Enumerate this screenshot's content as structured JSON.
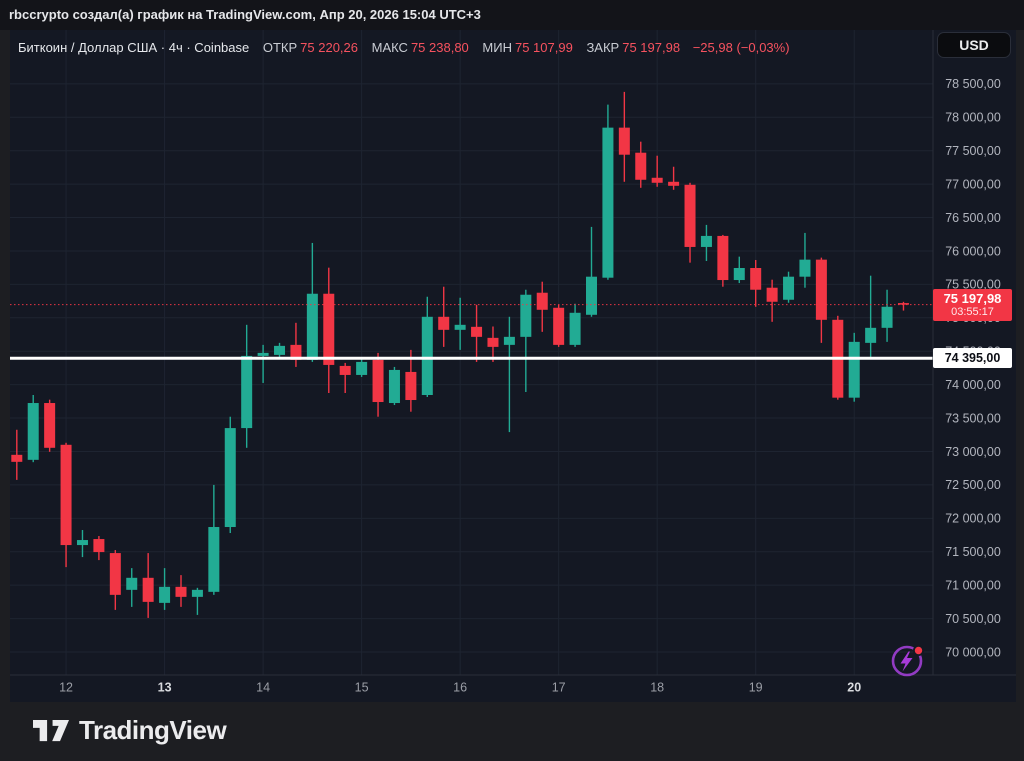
{
  "attribution": {
    "text": "rbccrypto создал(а) график на TradingView.com, Апр 20, 2026 15:04 UTC+3"
  },
  "symbol_bar": {
    "title": "Биткоин / Доллар США · 4ч · Coinbase",
    "ohlc": [
      {
        "label": "ОТКР",
        "value": "75 220,26"
      },
      {
        "label": "МАКС",
        "value": "75 238,80"
      },
      {
        "label": "МИН",
        "value": "75 107,99"
      },
      {
        "label": "ЗАКР",
        "value": "75 197,98"
      }
    ],
    "change": "−25,98 (−0,03%)"
  },
  "currency_button": {
    "label": "USD"
  },
  "footer": {
    "logo_text": "TradingView"
  },
  "colors": {
    "up": "#22ab94",
    "down": "#f23645",
    "grid": "#1e2431",
    "separator": "#2a2e39",
    "axis_text": "#b2b5be",
    "axis_text_bold": "#d8dade",
    "axis_text_dim": "#9b9ea6",
    "white_line": "#ffffff",
    "dotted_line": "#f23645"
  },
  "chart_data": {
    "type": "candlestick",
    "title": "Биткоин / Доллар США",
    "interval": "4ч",
    "exchange": "Coinbase",
    "y_axis": {
      "min": 70000,
      "max": 78500,
      "step": 500,
      "decimal": ",00"
    },
    "x_ticks": [
      {
        "label": "12",
        "candle": 3,
        "bold": false
      },
      {
        "label": "13",
        "candle": 9,
        "bold": true
      },
      {
        "label": "14",
        "candle": 15,
        "bold": false
      },
      {
        "label": "15",
        "candle": 21,
        "bold": false
      },
      {
        "label": "16",
        "candle": 27,
        "bold": false
      },
      {
        "label": "17",
        "candle": 33,
        "bold": false
      },
      {
        "label": "18",
        "candle": 39,
        "bold": false
      },
      {
        "label": "19",
        "candle": 45,
        "bold": false
      },
      {
        "label": "20",
        "candle": 51,
        "bold": true
      }
    ],
    "candles": [
      [
        72950,
        73325,
        72575,
        72845
      ],
      [
        72875,
        73845,
        72840,
        73725
      ],
      [
        73725,
        73775,
        72995,
        73055
      ],
      [
        73100,
        73130,
        71270,
        71600
      ],
      [
        71600,
        71825,
        71420,
        71675
      ],
      [
        71690,
        71735,
        71375,
        71495
      ],
      [
        71480,
        71525,
        70630,
        70855
      ],
      [
        70930,
        71255,
        70675,
        71110
      ],
      [
        71110,
        71480,
        70510,
        70750
      ],
      [
        70735,
        71255,
        70630,
        70975
      ],
      [
        70975,
        71150,
        70675,
        70825
      ],
      [
        70825,
        70960,
        70555,
        70930
      ],
      [
        70900,
        72500,
        70855,
        71870
      ],
      [
        71870,
        73520,
        71780,
        73350
      ],
      [
        73350,
        74895,
        73055,
        74430
      ],
      [
        74430,
        74595,
        74025,
        74475
      ],
      [
        74445,
        74625,
        74400,
        74580
      ],
      [
        74595,
        74925,
        74265,
        74370
      ],
      [
        74370,
        76120,
        74340,
        75360
      ],
      [
        75360,
        75750,
        73875,
        74295
      ],
      [
        74280,
        74325,
        73875,
        74145
      ],
      [
        74145,
        74400,
        74115,
        74340
      ],
      [
        74370,
        74475,
        73520,
        73740
      ],
      [
        73725,
        74265,
        73695,
        74220
      ],
      [
        74190,
        74520,
        73595,
        73770
      ],
      [
        73845,
        75315,
        73815,
        75015
      ],
      [
        75015,
        75465,
        74565,
        74820
      ],
      [
        74820,
        75300,
        74520,
        74895
      ],
      [
        74865,
        75195,
        74340,
        74715
      ],
      [
        74700,
        74870,
        74340,
        74565
      ],
      [
        74595,
        75015,
        73290,
        74715
      ],
      [
        74715,
        75420,
        73890,
        75345
      ],
      [
        75375,
        75540,
        74790,
        75120
      ],
      [
        75150,
        75195,
        74565,
        74595
      ],
      [
        74595,
        75210,
        74565,
        75075
      ],
      [
        75045,
        76360,
        75015,
        75615
      ],
      [
        75600,
        78190,
        75570,
        77845
      ],
      [
        77845,
        78380,
        77035,
        77440
      ],
      [
        77470,
        77635,
        76945,
        77065
      ],
      [
        77095,
        77425,
        76960,
        77020
      ],
      [
        77035,
        77260,
        76915,
        76975
      ],
      [
        76990,
        77020,
        75825,
        76060
      ],
      [
        76060,
        76390,
        75850,
        76225
      ],
      [
        76225,
        76240,
        75465,
        75565
      ],
      [
        75565,
        75915,
        75520,
        75745
      ],
      [
        75745,
        75865,
        75165,
        75420
      ],
      [
        75450,
        75570,
        74940,
        75240
      ],
      [
        75270,
        75690,
        75225,
        75615
      ],
      [
        75615,
        76270,
        75450,
        75870
      ],
      [
        75870,
        75900,
        74625,
        74970
      ],
      [
        74970,
        75030,
        73775,
        73805
      ],
      [
        73805,
        74775,
        73745,
        74640
      ],
      [
        74625,
        75630,
        74400,
        74850
      ],
      [
        74850,
        75420,
        74640,
        75165
      ],
      [
        75220.26,
        75238.8,
        75107.99,
        75197.98
      ]
    ],
    "price_line": {
      "price": 75197.98,
      "label": "75 197,98",
      "countdown": "03:55:17"
    },
    "hline": {
      "price": 74395,
      "label": "74 395,00"
    }
  }
}
